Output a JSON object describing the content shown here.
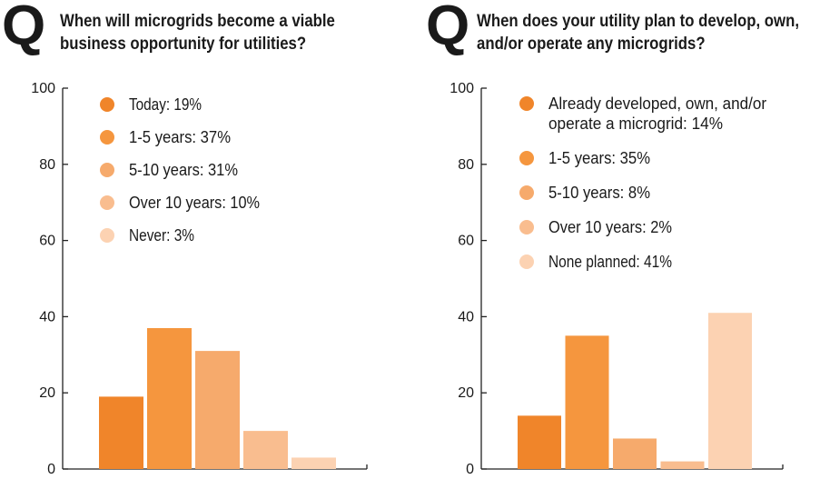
{
  "chart_data": [
    {
      "type": "bar",
      "title": "When will microgrids become a viable business opportunity for utilities?",
      "title_lines": [
        "When will microgrids become a viable",
        "business opportunity for utilities?"
      ],
      "question_mark": "Q",
      "categories": [
        "Today",
        "1-5 years",
        "5-10 years",
        "Over 10 years",
        "Never"
      ],
      "values": [
        19,
        37,
        31,
        10,
        3
      ],
      "colors": [
        "#f0852a",
        "#f5963e",
        "#f6aa6c",
        "#f9bd8f",
        "#fcd2b2"
      ],
      "legend": [
        {
          "lines": [
            "Today: 19%"
          ]
        },
        {
          "lines": [
            "1-5 years: 37%"
          ]
        },
        {
          "lines": [
            "5-10 years: 31%"
          ]
        },
        {
          "lines": [
            "Over 10 years: 10%"
          ]
        },
        {
          "lines": [
            "Never: 3%"
          ]
        }
      ],
      "yticks": [
        0,
        20,
        40,
        60,
        80,
        100
      ],
      "ylim": [
        0,
        100
      ],
      "legend_position": "top-left inside plot",
      "grid": false
    },
    {
      "type": "bar",
      "title": "When does your utility plan to develop, own, and/or operate any microgrids?",
      "title_lines": [
        "When does your utility plan to develop, own,",
        "and/or operate any microgrids?"
      ],
      "question_mark": "Q",
      "categories": [
        "Already developed, own, and/or operate a microgrid",
        "1-5 years",
        "5-10 years",
        "Over 10 years",
        "None planned"
      ],
      "values": [
        14,
        35,
        8,
        2,
        41
      ],
      "colors": [
        "#f0852a",
        "#f5963e",
        "#f6aa6c",
        "#f9bd8f",
        "#fcd2b2"
      ],
      "legend": [
        {
          "lines": [
            "Already developed, own, and/or",
            "operate a microgrid: 14%"
          ]
        },
        {
          "lines": [
            "1-5 years: 35%"
          ]
        },
        {
          "lines": [
            "5-10 years: 8%"
          ]
        },
        {
          "lines": [
            "Over 10 years: 2%"
          ]
        },
        {
          "lines": [
            "None planned: 41%"
          ]
        }
      ],
      "yticks": [
        0,
        20,
        40,
        60,
        80,
        100
      ],
      "ylim": [
        0,
        100
      ],
      "legend_position": "top-left inside plot",
      "grid": false
    }
  ]
}
